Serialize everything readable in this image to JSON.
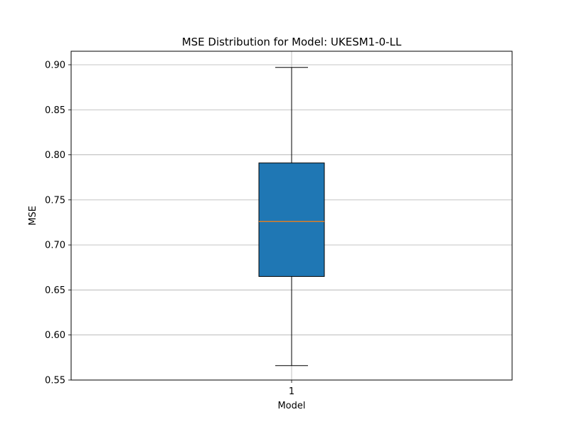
{
  "chart_data": {
    "type": "boxplot",
    "title": "MSE Distribution for Model: UKESM1-0-LL",
    "xlabel": "Model",
    "ylabel": "MSE",
    "categories": [
      "1"
    ],
    "boxes": [
      {
        "category": "1",
        "whisker_low": 0.566,
        "q1": 0.665,
        "median": 0.726,
        "q3": 0.791,
        "whisker_high": 0.897
      }
    ],
    "ylim": [
      0.55,
      0.915
    ],
    "yticks": [
      0.55,
      0.6,
      0.65,
      0.7,
      0.75,
      0.8,
      0.85,
      0.9
    ],
    "ytick_labels": [
      "0.55",
      "0.60",
      "0.65",
      "0.70",
      "0.75",
      "0.80",
      "0.85",
      "0.90"
    ],
    "grid": true,
    "colors": {
      "box_fill": "#1f77b4",
      "median": "#ff7f0e",
      "grid": "#b0b0b0",
      "frame": "#000000"
    }
  }
}
